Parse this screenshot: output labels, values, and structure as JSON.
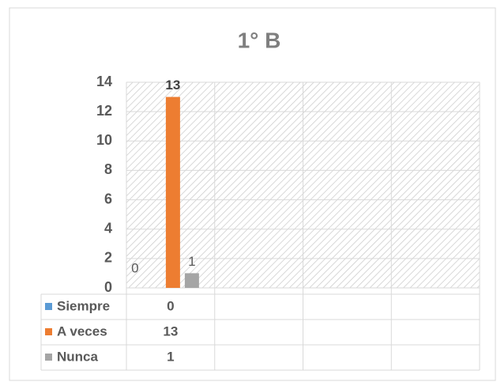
{
  "chart_data": {
    "type": "bar",
    "title": "1° B",
    "categories": [
      null,
      null,
      null,
      null
    ],
    "series": [
      {
        "name": "Siempre",
        "color": "#5b9bd5",
        "values": [
          0,
          null,
          null,
          null
        ]
      },
      {
        "name": "A veces",
        "color": "#ed7d31",
        "values": [
          13,
          null,
          null,
          null
        ]
      },
      {
        "name": "Nunca",
        "color": "#a5a5a5",
        "values": [
          1,
          null,
          null,
          null
        ]
      }
    ],
    "ylim": [
      0,
      14
    ],
    "yticks": [
      0,
      2,
      4,
      6,
      8,
      10,
      12,
      14
    ],
    "grid": true,
    "data_table": true
  }
}
